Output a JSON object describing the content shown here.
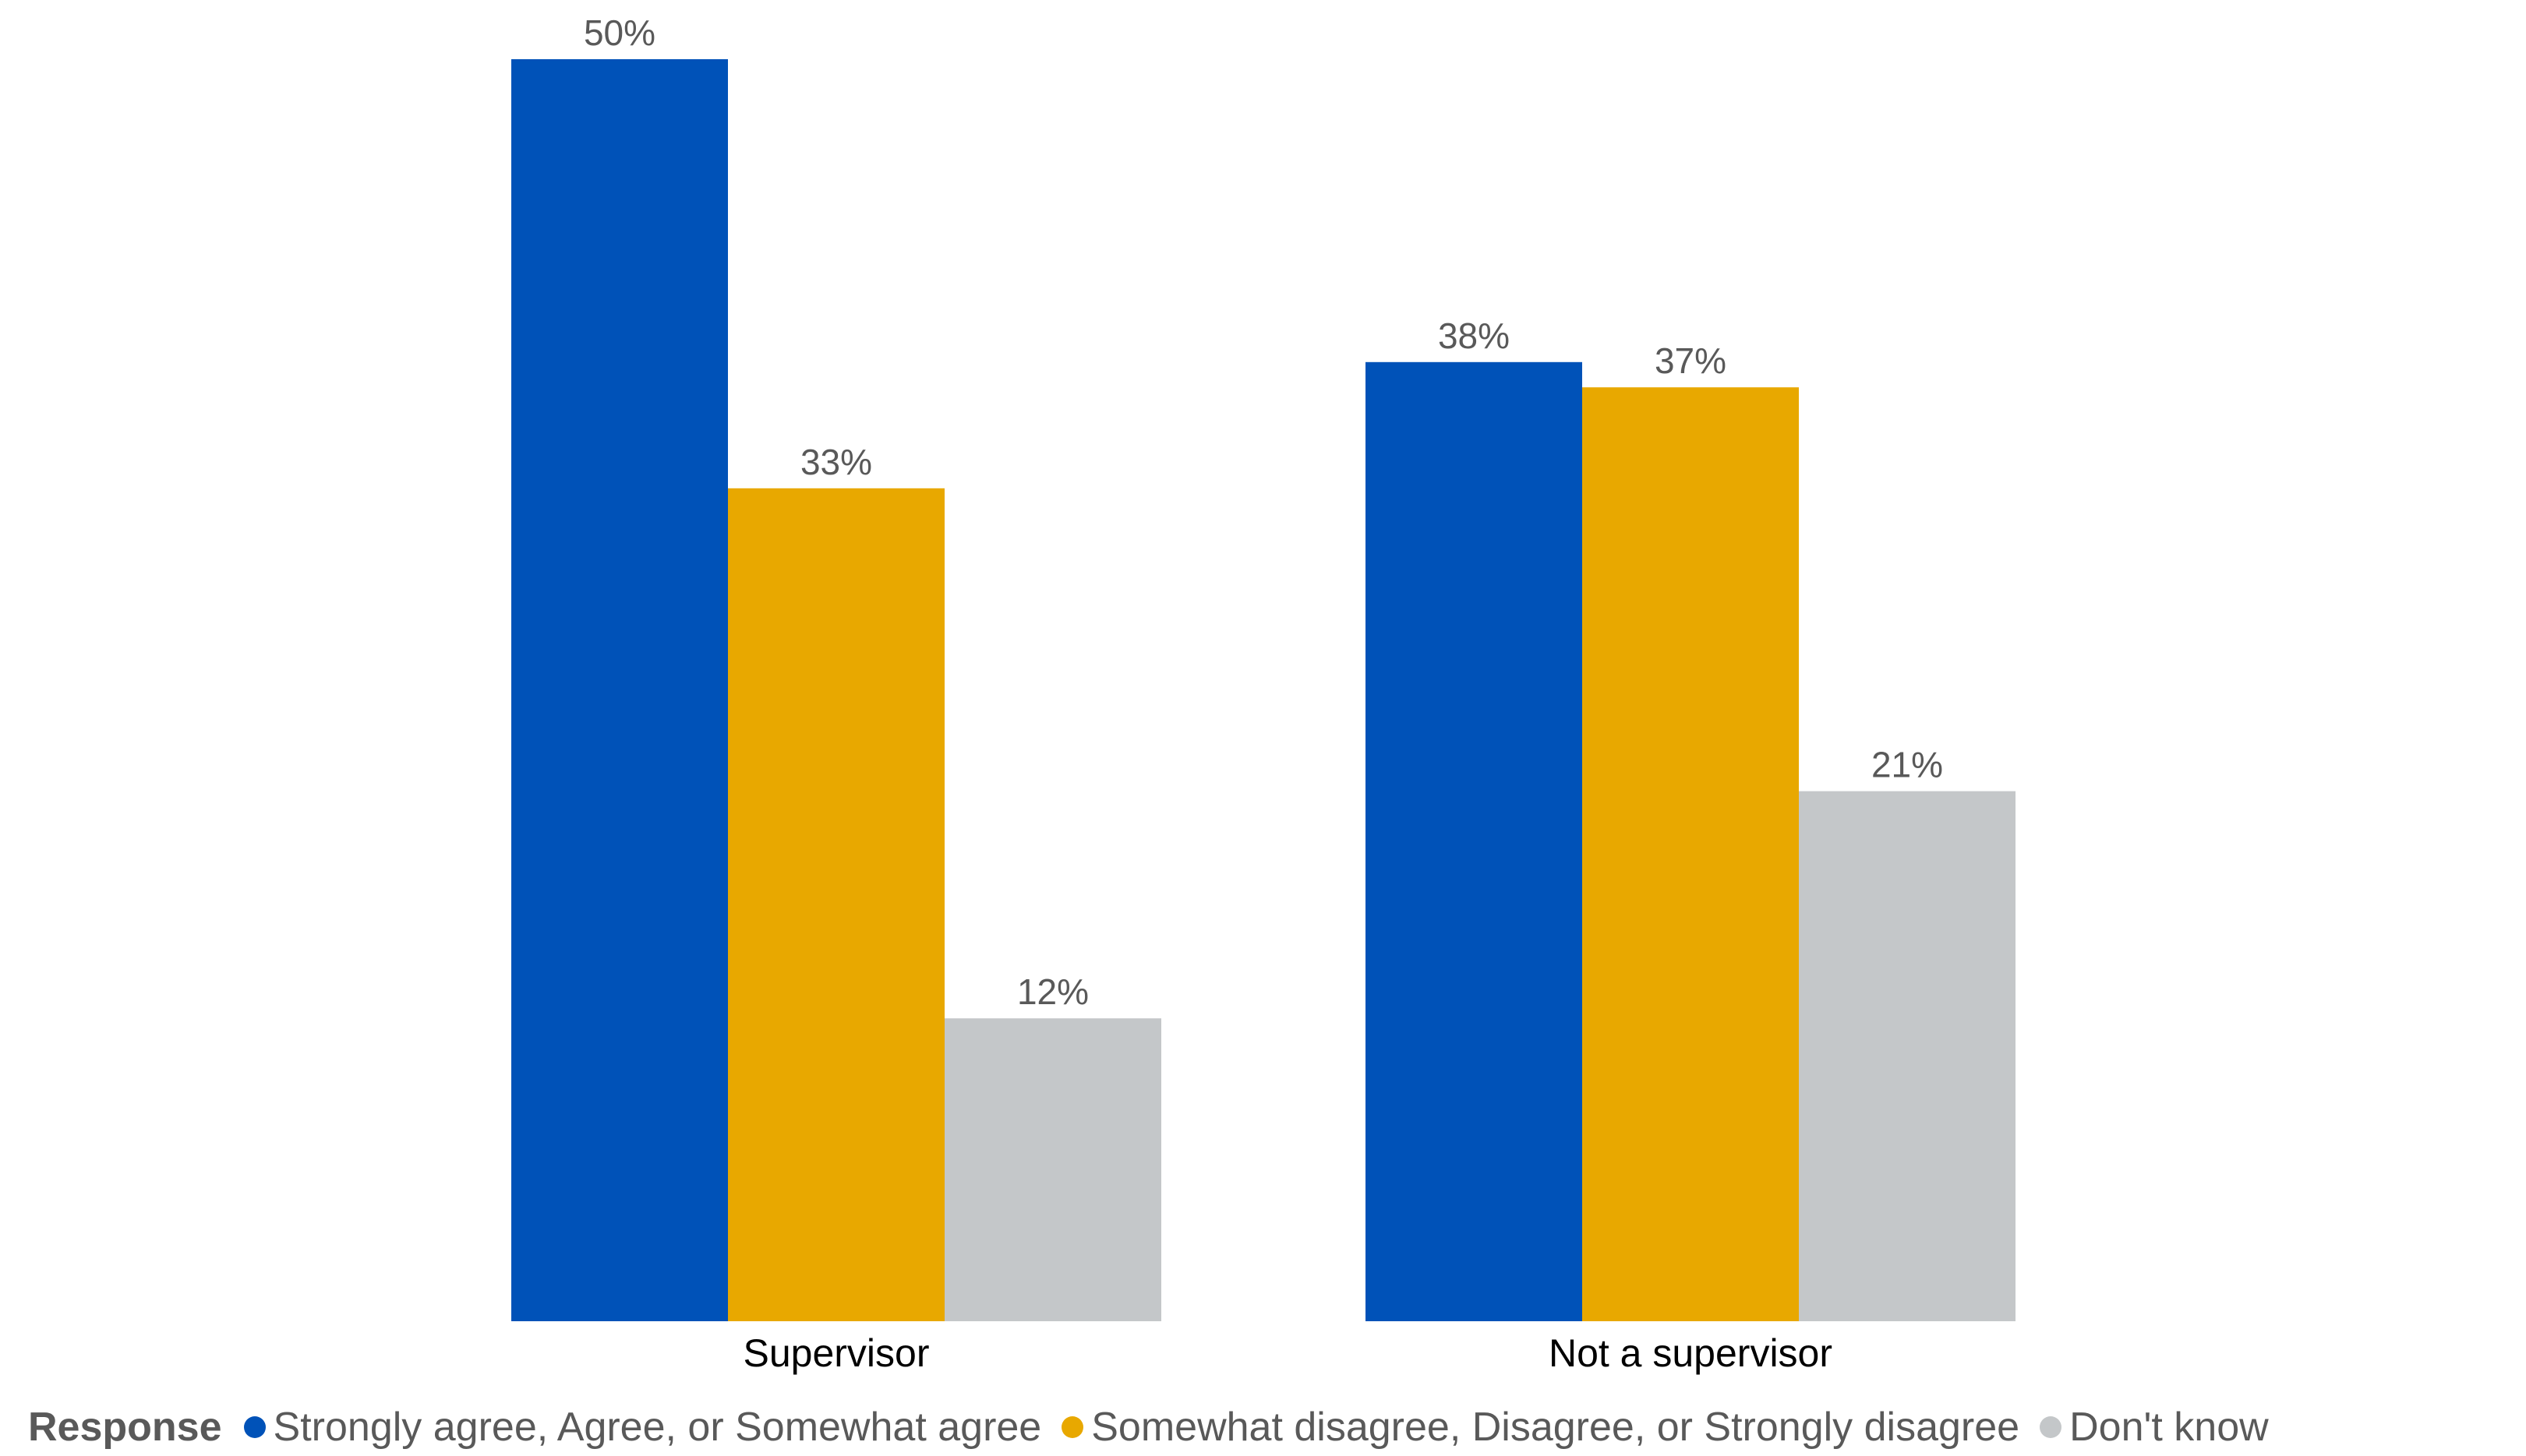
{
  "chart_data": {
    "type": "bar",
    "categories": [
      "Supervisor",
      "Not a supervisor"
    ],
    "series": [
      {
        "name": "Strongly agree, Agree, or Somewhat agree",
        "values": [
          50,
          38
        ],
        "color": "#0052B8"
      },
      {
        "name": "Somewhat disagree, Disagree, or Strongly disagree",
        "values": [
          33,
          37
        ],
        "color": "#E8A800"
      },
      {
        "name": "Don't know",
        "values": [
          12,
          21
        ],
        "color": "#C4C7C9"
      }
    ],
    "data_labels": [
      [
        "50%",
        "38%"
      ],
      [
        "33%",
        "37%"
      ],
      [
        "12%",
        "21%"
      ]
    ],
    "ylim": [
      0,
      50
    ],
    "grid": false,
    "legend_title": "Response",
    "legend_position": "bottom-left"
  }
}
